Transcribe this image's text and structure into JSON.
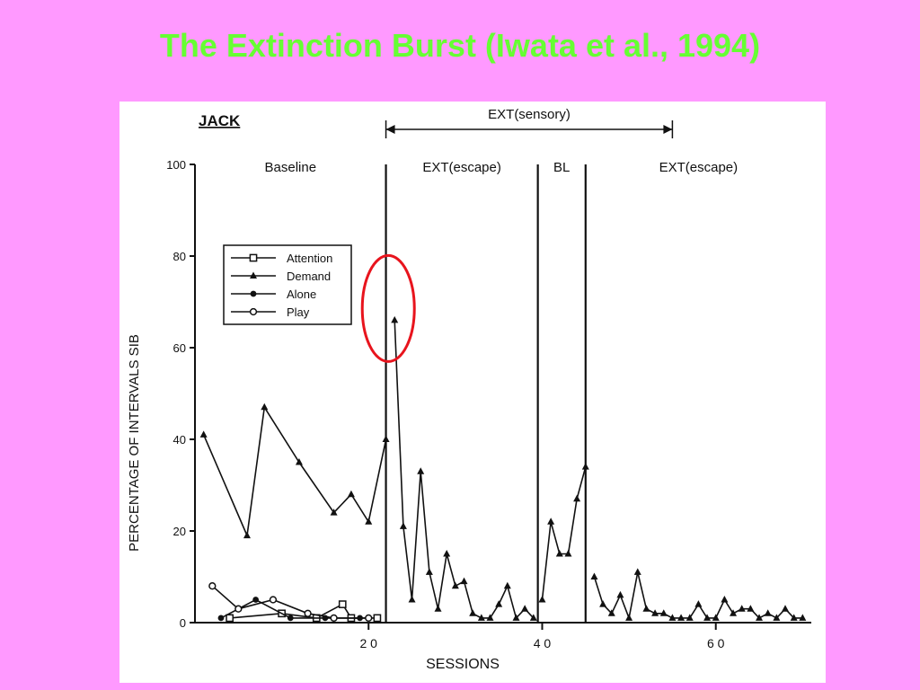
{
  "slide": {
    "title": "The Extinction Burst (Iwata et al., 1994)",
    "accent_color": "#66ff33",
    "background_color": "#ff99ff",
    "highlight_color": "#e8141d"
  },
  "chart_data": {
    "type": "line",
    "subject": "JACK",
    "xlabel": "SESSIONS",
    "ylabel": "PERCENTAGE OF INTERVALS SIB",
    "xlim": [
      0,
      71
    ],
    "ylim": [
      0,
      100
    ],
    "x_ticks": [
      20,
      40,
      60
    ],
    "x_tick_labels": [
      "2 0",
      "4 0",
      "6 0"
    ],
    "y_ticks": [
      0,
      20,
      40,
      60,
      80,
      100
    ],
    "grid": false,
    "legend_placement": "upper-left",
    "phase_lines": [
      22,
      39.5,
      45
    ],
    "phases": [
      {
        "label": "Baseline",
        "start": 0,
        "end": 22
      },
      {
        "label": "EXT(escape)",
        "start": 22,
        "end": 39.5
      },
      {
        "label": "BL",
        "start": 39.5,
        "end": 45
      },
      {
        "label": "EXT(escape)",
        "start": 45,
        "end": 71
      }
    ],
    "bracket": {
      "label": "EXT(sensory)",
      "start": 22,
      "end": 55
    },
    "highlight": {
      "series": "Demand",
      "x": 23,
      "y": 66
    },
    "series": [
      {
        "name": "Attention",
        "marker": "open-square",
        "points": [
          [
            4,
            1
          ],
          [
            10,
            2
          ],
          [
            14,
            1
          ],
          [
            17,
            4
          ],
          [
            18,
            1
          ],
          [
            21,
            1
          ]
        ]
      },
      {
        "name": "Demand",
        "marker": "filled-triangle",
        "segments": [
          [
            [
              1,
              41
            ],
            [
              6,
              19
            ],
            [
              8,
              47
            ],
            [
              12,
              35
            ],
            [
              16,
              24
            ],
            [
              18,
              28
            ],
            [
              20,
              22
            ],
            [
              22,
              40
            ]
          ],
          [
            [
              23,
              66
            ],
            [
              24,
              21
            ],
            [
              25,
              5
            ],
            [
              26,
              33
            ],
            [
              27,
              11
            ],
            [
              28,
              3
            ],
            [
              29,
              15
            ],
            [
              30,
              8
            ],
            [
              31,
              9
            ],
            [
              32,
              2
            ],
            [
              33,
              1
            ],
            [
              34,
              1
            ],
            [
              35,
              4
            ],
            [
              36,
              8
            ],
            [
              37,
              1
            ],
            [
              38,
              3
            ],
            [
              39,
              1
            ]
          ],
          [
            [
              40,
              5
            ],
            [
              41,
              22
            ],
            [
              42,
              15
            ],
            [
              43,
              15
            ],
            [
              44,
              27
            ],
            [
              45,
              34
            ]
          ],
          [
            [
              46,
              10
            ],
            [
              47,
              4
            ],
            [
              48,
              2
            ],
            [
              49,
              6
            ],
            [
              50,
              1
            ],
            [
              51,
              11
            ],
            [
              52,
              3
            ],
            [
              53,
              2
            ],
            [
              54,
              2
            ],
            [
              55,
              1
            ],
            [
              56,
              1
            ],
            [
              57,
              1
            ],
            [
              58,
              4
            ],
            [
              59,
              1
            ],
            [
              60,
              1
            ],
            [
              61,
              5
            ],
            [
              62,
              2
            ],
            [
              63,
              3
            ],
            [
              64,
              3
            ],
            [
              65,
              1
            ],
            [
              66,
              2
            ],
            [
              67,
              1
            ],
            [
              68,
              3
            ],
            [
              69,
              1
            ],
            [
              70,
              1
            ]
          ]
        ]
      },
      {
        "name": "Alone",
        "marker": "filled-circle",
        "points": [
          [
            3,
            1
          ],
          [
            7,
            5
          ],
          [
            11,
            1
          ],
          [
            15,
            1
          ],
          [
            19,
            1
          ]
        ]
      },
      {
        "name": "Play",
        "marker": "open-circle",
        "points": [
          [
            2,
            8
          ],
          [
            5,
            3
          ],
          [
            9,
            5
          ],
          [
            13,
            2
          ],
          [
            16,
            1
          ],
          [
            20,
            1
          ]
        ]
      }
    ]
  }
}
